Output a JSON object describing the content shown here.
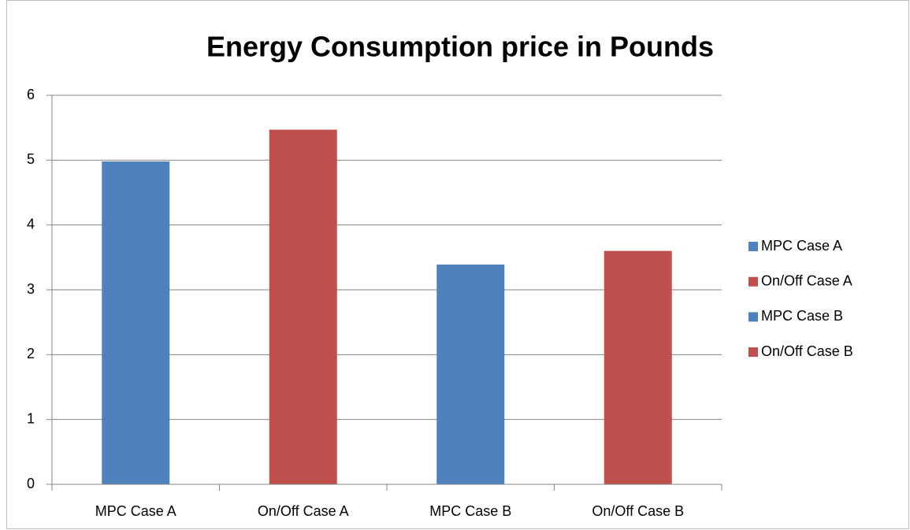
{
  "chart_data": {
    "type": "bar",
    "title": "Energy Consumption price in Pounds",
    "categories": [
      "MPC Case A",
      "On/Off Case A",
      "MPC Case B",
      "On/Off Case B"
    ],
    "values": [
      4.98,
      5.47,
      3.39,
      3.6
    ],
    "colors": [
      "#4f81bd",
      "#c0504d",
      "#4f81bd",
      "#c0504d"
    ],
    "ylim": [
      0,
      6
    ],
    "yticks": [
      0,
      1,
      2,
      3,
      4,
      5,
      6
    ],
    "grid": true,
    "legend": "right"
  }
}
